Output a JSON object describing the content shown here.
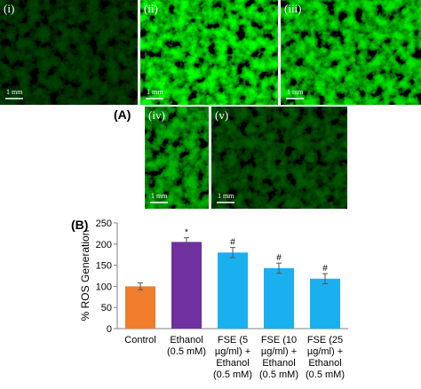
{
  "panels": [
    {
      "label": "(i)",
      "scale": "1 mm"
    },
    {
      "label": "(ii)",
      "scale": "1 mm"
    },
    {
      "label": "(iii)",
      "scale": "1 mm"
    },
    {
      "label": "(iv)",
      "scale": "1 mm"
    },
    {
      "label": "(v)",
      "scale": "1 mm"
    }
  ],
  "panel_group_label": "(A)",
  "chart_data": {
    "type": "bar",
    "panel_label": "(B)",
    "ylabel": "% ROS Generation",
    "categories": [
      [
        "Control"
      ],
      [
        "Ethanol",
        "(0.5 mM)"
      ],
      [
        "FSE (5",
        "µg/ml) +",
        "Ethanol",
        "(0.5 mM)"
      ],
      [
        "FSE (10",
        "µg/ml) +",
        "Ethanol",
        "(0.5 mM)"
      ],
      [
        "FSE (25",
        "µg/ml) +",
        "Ethanol",
        "(0.5 mM)"
      ]
    ],
    "series": [
      {
        "values": [
          100,
          205,
          180,
          143,
          118
        ],
        "errors": [
          8,
          10,
          12,
          12,
          12
        ],
        "colors": [
          "#f07c2c",
          "#7030a0",
          "#1ab0f0",
          "#1ab0f0",
          "#1ab0f0"
        ],
        "annotations": [
          null,
          "*",
          "#",
          "#",
          "#"
        ]
      }
    ],
    "ylim": [
      0,
      250
    ],
    "yticks": [
      0,
      50,
      100,
      150,
      200,
      250
    ]
  }
}
